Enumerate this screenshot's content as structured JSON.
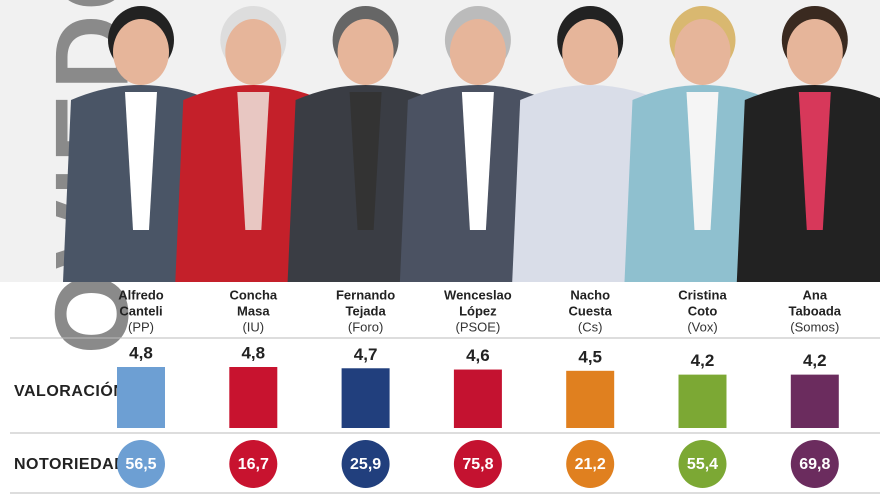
{
  "title": "OVIEDO",
  "candidates": [
    {
      "name1": "Alfredo",
      "name2": "Canteli",
      "party": "(PP)",
      "color": "#6d9fd3"
    },
    {
      "name1": "Concha",
      "name2": "Masa",
      "party": "(IU)",
      "color": "#c8132f"
    },
    {
      "name1": "Fernando",
      "name2": "Tejada",
      "party": "(Foro)",
      "color": "#213f7d"
    },
    {
      "name1": "Wenceslao",
      "name2": "López",
      "party": "(PSOE)",
      "color": "#c41230"
    },
    {
      "name1": "Nacho",
      "name2": "Cuesta",
      "party": "(Cs)",
      "color": "#e0801f"
    },
    {
      "name1": "Cristina",
      "name2": "Coto",
      "party": "(Vox)",
      "color": "#7ca834"
    },
    {
      "name1": "Ana",
      "name2": "Taboada",
      "party": "(Somos)",
      "color": "#6b2c5e"
    }
  ],
  "valoracion": {
    "label": "VALORACIÓN",
    "values": [
      4.8,
      4.8,
      4.7,
      4.6,
      4.5,
      4.2,
      4.2
    ],
    "value_labels": [
      "4,8",
      "4,8",
      "4,7",
      "4,6",
      "4,5",
      "4,2",
      "4,2"
    ]
  },
  "notoriedad": {
    "label": "NOTORIEDAD",
    "values": [
      56.5,
      16.7,
      25.9,
      75.8,
      21.2,
      55.4,
      69.8
    ],
    "value_labels": [
      "56,5",
      "16,7",
      "25,9",
      "75,8",
      "21,2",
      "55,4",
      "69,8"
    ]
  }
}
